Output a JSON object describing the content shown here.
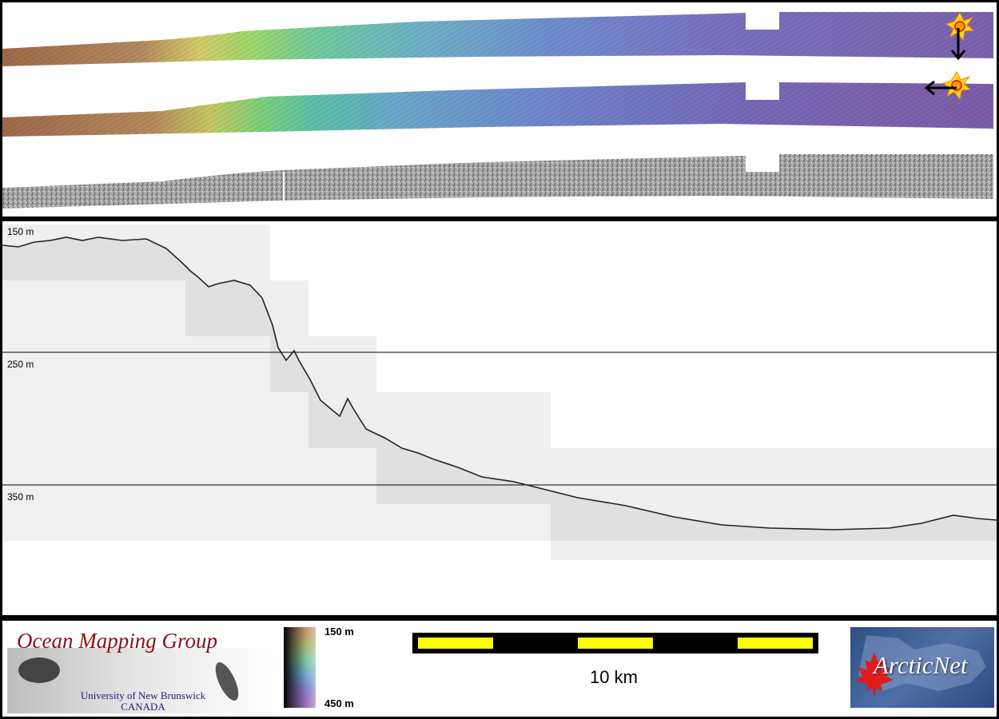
{
  "profile": {
    "depth_labels": [
      "150 m",
      "250 m",
      "350 m"
    ]
  },
  "legend": {
    "colorbar": {
      "top_label": "150 m",
      "bottom_label": "450 m"
    },
    "scale_bar": {
      "label": "10 km"
    }
  },
  "logos": {
    "omg": {
      "title": "Ocean Mapping Group",
      "line1": "University of New Brunswick",
      "line2": "CANADA"
    },
    "arcticnet": {
      "name": "ArcticNet"
    }
  },
  "icons": [
    "sun-icon",
    "arrow-down-icon",
    "arrow-left-icon",
    "maple-leaf-icon"
  ]
}
